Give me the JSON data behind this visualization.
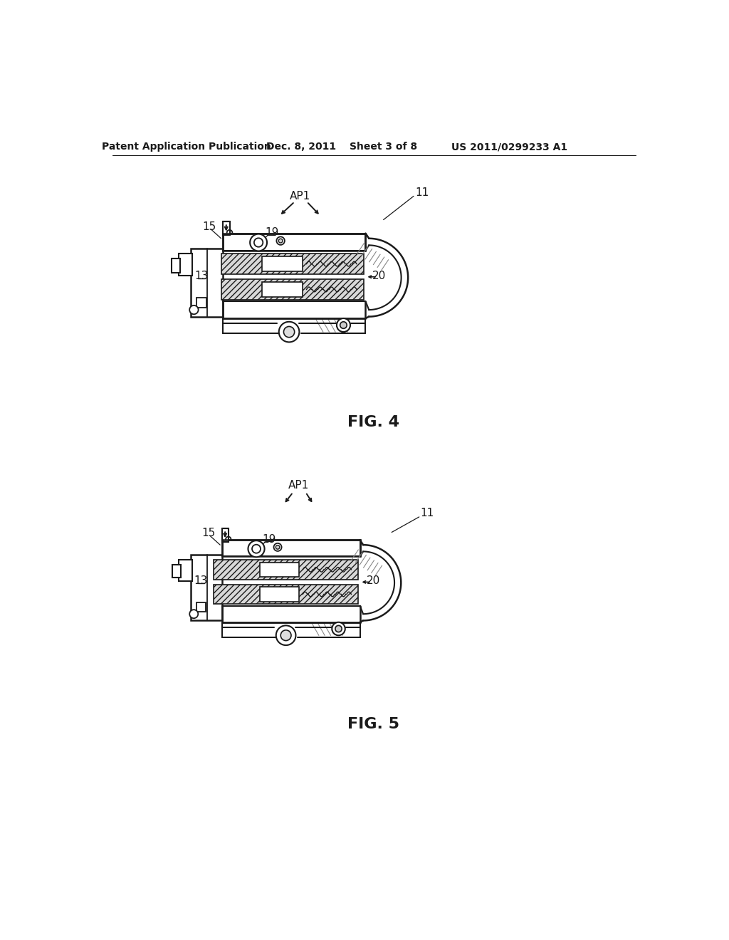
{
  "bg_color": "#ffffff",
  "line_color": "#1a1a1a",
  "header_text": "Patent Application Publication",
  "header_date": "Dec. 8, 2011",
  "header_sheet": "Sheet 3 of 8",
  "header_patent": "US 2011/0299233 A1",
  "fig4_label": "FIG. 4",
  "fig5_label": "FIG. 5"
}
